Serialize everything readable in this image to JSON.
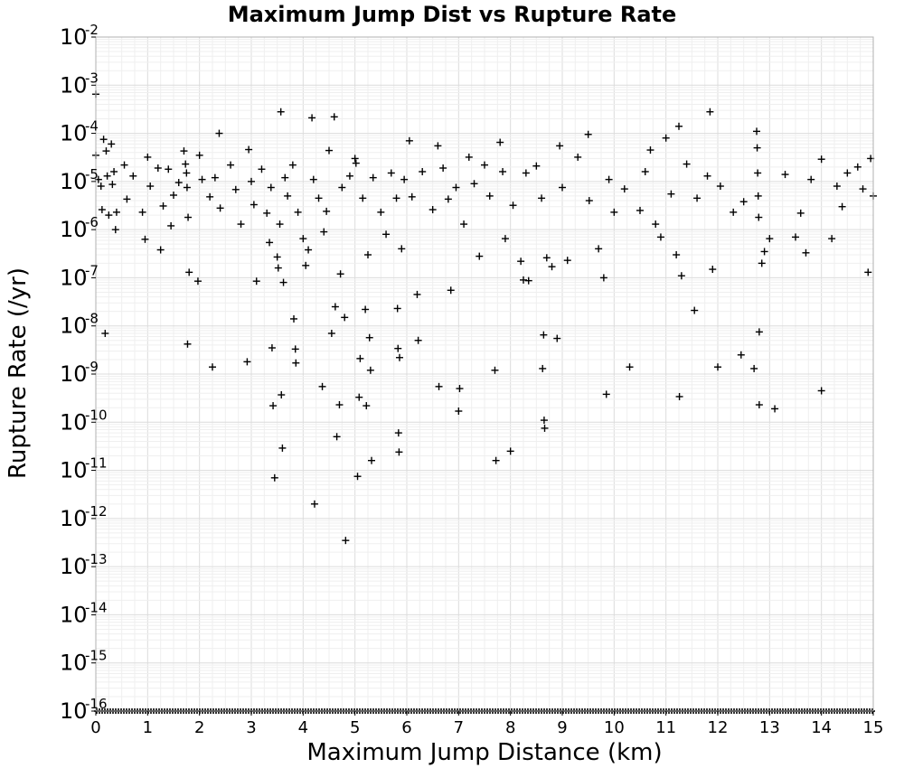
{
  "chart_data": {
    "type": "scatter",
    "title": "Maximum Jump Dist vs Rupture Rate",
    "xlabel": "Maximum Jump Distance (km)",
    "ylabel": "Rupture Rate (/yr)",
    "xlim": [
      0,
      15
    ],
    "ylim": [
      1e-16,
      0.01
    ],
    "y_scale": "log",
    "grid": true,
    "marker": "plus",
    "marker_color": "#000000",
    "x_ticks": [
      "0",
      "1",
      "2",
      "3",
      "4",
      "5",
      "6",
      "7",
      "8",
      "9",
      "10",
      "11",
      "12",
      "13",
      "14",
      "15"
    ],
    "y_ticks": [
      {
        "base": "10",
        "exp": "-2"
      },
      {
        "base": "10",
        "exp": "-3"
      },
      {
        "base": "10",
        "exp": "-4"
      },
      {
        "base": "10",
        "exp": "-5"
      },
      {
        "base": "10",
        "exp": "-6"
      },
      {
        "base": "10",
        "exp": "-7"
      },
      {
        "base": "10",
        "exp": "-8"
      },
      {
        "base": "10",
        "exp": "-9"
      },
      {
        "base": "10",
        "exp": "-10"
      },
      {
        "base": "10",
        "exp": "-11"
      },
      {
        "base": "10",
        "exp": "-12"
      },
      {
        "base": "10",
        "exp": "-13"
      },
      {
        "base": "10",
        "exp": "-14"
      },
      {
        "base": "10",
        "exp": "-15"
      },
      {
        "base": "10",
        "exp": "-16"
      }
    ],
    "points": [
      [
        0.0,
        0.00065
      ],
      [
        0.0,
        3.5e-05
      ],
      [
        0.05,
        1.1e-05
      ],
      [
        0.1,
        8e-06
      ],
      [
        0.12,
        2.6e-06
      ],
      [
        0.15,
        7.5e-05
      ],
      [
        0.2,
        4.3e-05
      ],
      [
        0.22,
        1.3e-05
      ],
      [
        0.25,
        2e-06
      ],
      [
        0.3,
        6e-05
      ],
      [
        0.32,
        8.7e-06
      ],
      [
        0.35,
        1.6e-05
      ],
      [
        0.38,
        1e-06
      ],
      [
        0.4,
        2.3e-06
      ],
      [
        0.18,
        7e-09
      ],
      [
        0.55,
        2.2e-05
      ],
      [
        0.6,
        4.3e-06
      ],
      [
        0.72,
        1.3e-05
      ],
      [
        0.9,
        2.3e-06
      ],
      [
        0.95,
        6.3e-07
      ],
      [
        1.0,
        3.2e-05
      ],
      [
        1.05,
        8e-06
      ],
      [
        1.2,
        1.9e-05
      ],
      [
        1.25,
        3.8e-07
      ],
      [
        1.3,
        3.1e-06
      ],
      [
        1.4,
        1.8e-05
      ],
      [
        1.45,
        1.2e-06
      ],
      [
        1.5,
        5.2e-06
      ],
      [
        1.6,
        9.5e-06
      ],
      [
        1.7,
        4.3e-05
      ],
      [
        1.73,
        2.3e-05
      ],
      [
        1.75,
        1.5e-05
      ],
      [
        1.76,
        7.5e-06
      ],
      [
        1.78,
        1.8e-06
      ],
      [
        1.8,
        1.3e-07
      ],
      [
        1.77,
        4.2e-09
      ],
      [
        1.97,
        8.5e-08
      ],
      [
        2.0,
        3.5e-05
      ],
      [
        2.05,
        1.1e-05
      ],
      [
        2.2,
        4.8e-06
      ],
      [
        2.25,
        1.4e-09
      ],
      [
        2.3,
        1.2e-05
      ],
      [
        2.38,
        0.0001
      ],
      [
        2.4,
        2.8e-06
      ],
      [
        2.6,
        2.2e-05
      ],
      [
        2.7,
        6.8e-06
      ],
      [
        2.8,
        1.3e-06
      ],
      [
        2.92,
        1.8e-09
      ],
      [
        2.95,
        4.6e-05
      ],
      [
        3.0,
        1e-05
      ],
      [
        3.05,
        3.3e-06
      ],
      [
        3.1,
        8.5e-08
      ],
      [
        3.2,
        1.8e-05
      ],
      [
        3.3,
        2.2e-06
      ],
      [
        3.35,
        5.4e-07
      ],
      [
        3.38,
        7.5e-06
      ],
      [
        3.4,
        3.5e-09
      ],
      [
        3.42,
        2.2e-10
      ],
      [
        3.45,
        7e-12
      ],
      [
        3.5,
        2.7e-07
      ],
      [
        3.52,
        1.6e-07
      ],
      [
        3.55,
        1.3e-06
      ],
      [
        3.57,
        0.00028
      ],
      [
        3.58,
        3.7e-10
      ],
      [
        3.6,
        2.9e-11
      ],
      [
        3.62,
        8e-08
      ],
      [
        3.65,
        1.2e-05
      ],
      [
        3.7,
        5e-06
      ],
      [
        3.8,
        2.2e-05
      ],
      [
        3.82,
        1.4e-08
      ],
      [
        3.85,
        3.3e-09
      ],
      [
        3.86,
        1.7e-09
      ],
      [
        3.9,
        2.3e-06
      ],
      [
        4.0,
        6.5e-07
      ],
      [
        4.05,
        1.8e-07
      ],
      [
        4.1,
        3.8e-07
      ],
      [
        4.17,
        0.00021
      ],
      [
        4.2,
        1.1e-05
      ],
      [
        4.22,
        2e-12
      ],
      [
        4.3,
        4.5e-06
      ],
      [
        4.37,
        5.5e-10
      ],
      [
        4.4,
        9e-07
      ],
      [
        4.45,
        2.4e-06
      ],
      [
        4.5,
        4.4e-05
      ],
      [
        4.55,
        7e-09
      ],
      [
        4.6,
        0.00022
      ],
      [
        4.62,
        2.5e-08
      ],
      [
        4.65,
        5e-11
      ],
      [
        4.7,
        2.3e-10
      ],
      [
        4.72,
        1.2e-07
      ],
      [
        4.75,
        7.5e-06
      ],
      [
        4.8,
        1.5e-08
      ],
      [
        4.82,
        3.5e-13
      ],
      [
        4.9,
        1.3e-05
      ],
      [
        5.0,
        3e-05
      ],
      [
        5.02,
        2.4e-05
      ],
      [
        5.05,
        7.5e-12
      ],
      [
        5.08,
        3.3e-10
      ],
      [
        5.1,
        2.1e-09
      ],
      [
        5.15,
        4.5e-06
      ],
      [
        5.2,
        2.2e-08
      ],
      [
        5.22,
        2.2e-10
      ],
      [
        5.25,
        3e-07
      ],
      [
        5.28,
        5.7e-09
      ],
      [
        5.3,
        1.2e-09
      ],
      [
        5.32,
        1.6e-11
      ],
      [
        5.35,
        1.2e-05
      ],
      [
        5.5,
        2.3e-06
      ],
      [
        5.6,
        8e-07
      ],
      [
        5.7,
        1.5e-05
      ],
      [
        5.8,
        4.5e-06
      ],
      [
        5.82,
        2.3e-08
      ],
      [
        5.83,
        3.4e-09
      ],
      [
        5.84,
        6e-11
      ],
      [
        5.85,
        2.4e-11
      ],
      [
        5.86,
        2.2e-09
      ],
      [
        5.9,
        4e-07
      ],
      [
        5.95,
        1.1e-05
      ],
      [
        6.05,
        7e-05
      ],
      [
        6.1,
        4.8e-06
      ],
      [
        6.2,
        4.5e-08
      ],
      [
        6.22,
        5e-09
      ],
      [
        6.3,
        1.6e-05
      ],
      [
        6.5,
        2.6e-06
      ],
      [
        6.6,
        5.5e-05
      ],
      [
        6.62,
        5.5e-10
      ],
      [
        6.7,
        1.9e-05
      ],
      [
        6.8,
        4.3e-06
      ],
      [
        6.85,
        5.5e-08
      ],
      [
        6.95,
        7.5e-06
      ],
      [
        7.0,
        1.7e-10
      ],
      [
        7.02,
        5e-10
      ],
      [
        7.1,
        1.3e-06
      ],
      [
        7.2,
        3.2e-05
      ],
      [
        7.3,
        9e-06
      ],
      [
        7.4,
        2.8e-07
      ],
      [
        7.5,
        2.2e-05
      ],
      [
        7.6,
        5e-06
      ],
      [
        7.7,
        1.2e-09
      ],
      [
        7.72,
        1.6e-11
      ],
      [
        7.8,
        6.5e-05
      ],
      [
        7.85,
        1.6e-05
      ],
      [
        7.9,
        6.5e-07
      ],
      [
        8.0,
        2.5e-11
      ],
      [
        8.05,
        3.2e-06
      ],
      [
        8.2,
        2.2e-07
      ],
      [
        8.25,
        9e-08
      ],
      [
        8.3,
        1.5e-05
      ],
      [
        8.35,
        8.7e-08
      ],
      [
        8.5,
        2.1e-05
      ],
      [
        8.6,
        4.5e-06
      ],
      [
        8.62,
        1.3e-09
      ],
      [
        8.64,
        6.5e-09
      ],
      [
        8.65,
        1.1e-10
      ],
      [
        8.66,
        7.5e-11
      ],
      [
        8.7,
        2.6e-07
      ],
      [
        8.8,
        1.7e-07
      ],
      [
        8.9,
        5.5e-09
      ],
      [
        8.95,
        5.5e-05
      ],
      [
        9.0,
        7.5e-06
      ],
      [
        9.1,
        2.3e-07
      ],
      [
        9.3,
        3.2e-05
      ],
      [
        9.5,
        9.5e-05
      ],
      [
        9.52,
        4e-06
      ],
      [
        9.7,
        4e-07
      ],
      [
        9.8,
        1e-07
      ],
      [
        9.85,
        3.8e-10
      ],
      [
        9.9,
        1.1e-05
      ],
      [
        10.0,
        2.3e-06
      ],
      [
        10.2,
        7e-06
      ],
      [
        10.3,
        1.4e-09
      ],
      [
        10.5,
        2.5e-06
      ],
      [
        10.6,
        1.6e-05
      ],
      [
        10.7,
        4.5e-05
      ],
      [
        10.8,
        1.3e-06
      ],
      [
        10.9,
        7e-07
      ],
      [
        11.0,
        8e-05
      ],
      [
        11.1,
        5.5e-06
      ],
      [
        11.2,
        3e-07
      ],
      [
        11.25,
        0.00014
      ],
      [
        11.26,
        3.4e-10
      ],
      [
        11.3,
        1.1e-07
      ],
      [
        11.4,
        2.3e-05
      ],
      [
        11.55,
        2.1e-08
      ],
      [
        11.6,
        4.5e-06
      ],
      [
        11.8,
        1.3e-05
      ],
      [
        11.85,
        0.00028
      ],
      [
        11.9,
        1.5e-07
      ],
      [
        12.0,
        1.4e-09
      ],
      [
        12.05,
        8e-06
      ],
      [
        12.3,
        2.3e-06
      ],
      [
        12.45,
        2.5e-09
      ],
      [
        12.5,
        3.8e-06
      ],
      [
        12.7,
        1.3e-09
      ],
      [
        12.75,
        0.00011
      ],
      [
        12.76,
        5e-05
      ],
      [
        12.77,
        1.5e-05
      ],
      [
        12.78,
        5e-06
      ],
      [
        12.79,
        1.8e-06
      ],
      [
        12.8,
        7.5e-09
      ],
      [
        12.8,
        2.3e-10
      ],
      [
        12.85,
        2e-07
      ],
      [
        12.9,
        3.5e-07
      ],
      [
        13.0,
        6.5e-07
      ],
      [
        13.1,
        1.9e-10
      ],
      [
        13.3,
        1.4e-05
      ],
      [
        13.5,
        7e-07
      ],
      [
        13.6,
        2.2e-06
      ],
      [
        13.7,
        3.3e-07
      ],
      [
        13.8,
        1.1e-05
      ],
      [
        14.0,
        4.5e-10
      ],
      [
        14.0,
        2.9e-05
      ],
      [
        14.2,
        6.5e-07
      ],
      [
        14.3,
        8e-06
      ],
      [
        14.4,
        3e-06
      ],
      [
        14.5,
        1.5e-05
      ],
      [
        14.7,
        2e-05
      ],
      [
        14.8,
        7e-06
      ],
      [
        14.9,
        1.3e-07
      ],
      [
        14.95,
        3e-05
      ],
      [
        15.0,
        5e-06
      ]
    ],
    "floor_value": 1e-16
  }
}
